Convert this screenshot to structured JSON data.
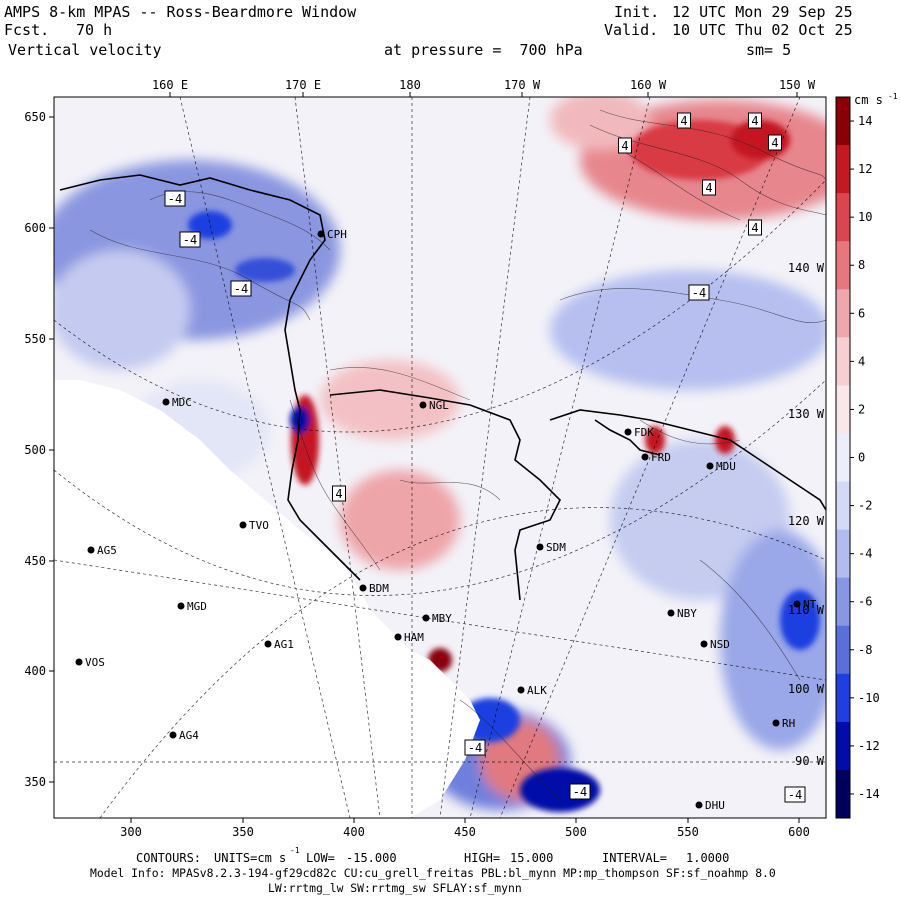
{
  "header": {
    "model_title": "AMPS 8-km MPAS -- Ross-Beardmore Window",
    "fcst_label": "Fcst.",
    "fcst_value": "70 h",
    "field_name": "Vertical velocity",
    "init_label": "Init.",
    "init_time": "12 UTC Mon 29 Sep 25",
    "valid_label": "Valid.",
    "valid_time": "10 UTC Thu 02 Oct 25",
    "pressure_text": "at pressure =  700 hPa",
    "smoothing_text": "sm= 5"
  },
  "colorbar": {
    "units": "cm s",
    "units_exp": "-1",
    "ticks": [
      "14",
      "12",
      "10",
      "8",
      "6",
      "4",
      "2",
      "0",
      "-2",
      "-4",
      "-6",
      "-8",
      "-10",
      "-12",
      "-14"
    ],
    "tick_values": [
      14,
      12,
      10,
      8,
      6,
      4,
      2,
      0,
      -2,
      -4,
      -6,
      -8,
      -10,
      -12,
      -14
    ],
    "range": [
      -15,
      15
    ],
    "colors": [
      "#00005a",
      "#000ca8",
      "#1f3fe0",
      "#5a6fd8",
      "#8896e3",
      "#b3bcee",
      "#d4d9f5",
      "#eceef9",
      "#f9e7e9",
      "#f6cfd2",
      "#eea7ac",
      "#e4787f",
      "#d94650",
      "#c41822",
      "#8a0008"
    ]
  },
  "axes": {
    "top_ticks": [
      "160 E",
      "170 E",
      "180",
      "170 W",
      "160 W",
      "150 W"
    ],
    "left_ticks": [
      "650",
      "600",
      "550",
      "500",
      "450",
      "400",
      "350"
    ],
    "bottom_ticks": [
      "300",
      "350",
      "400",
      "450",
      "500",
      "550",
      "600"
    ],
    "right_overlay_labels": [
      "140 W",
      "130 W",
      "120 W",
      "110 W",
      "100 W",
      "90 W"
    ]
  },
  "contour_labels": [
    "-4",
    "-4",
    "-4",
    "4",
    "4",
    "4",
    "4",
    "4",
    "4",
    "-4",
    "4",
    "-4",
    "-4",
    "-4"
  ],
  "stations": [
    "CPH",
    "MDC",
    "NGL",
    "FDK",
    "FRD",
    "MDU",
    "TVO",
    "AG5",
    "SDM",
    "BDM",
    "MGD",
    "NBY",
    "AG1",
    "MBY",
    "HAM",
    "NSD",
    "VOS",
    "ALK",
    "AG4",
    "RH",
    "DHU",
    "NT"
  ],
  "footer": {
    "contours_label": "CONTOURS:",
    "units_label": "UNITS=cm s",
    "units_exp": "-1",
    "low_label": "LOW=",
    "low_value": "-15.000",
    "high_label": "HIGH=",
    "high_value": "15.000",
    "interval_label": "INTERVAL=",
    "interval_value": "1.0000",
    "model_info": "Model Info: MPASv8.2.3-194-gf29cd82c CU:cu_grell_freitas PBL:bl_mynn MP:mp_thompson SF:sf_noahmp 8.0",
    "radiation_info": "LW:rrtmg_lw SW:rrtmg_sw SFLAY:sf_mynn"
  }
}
